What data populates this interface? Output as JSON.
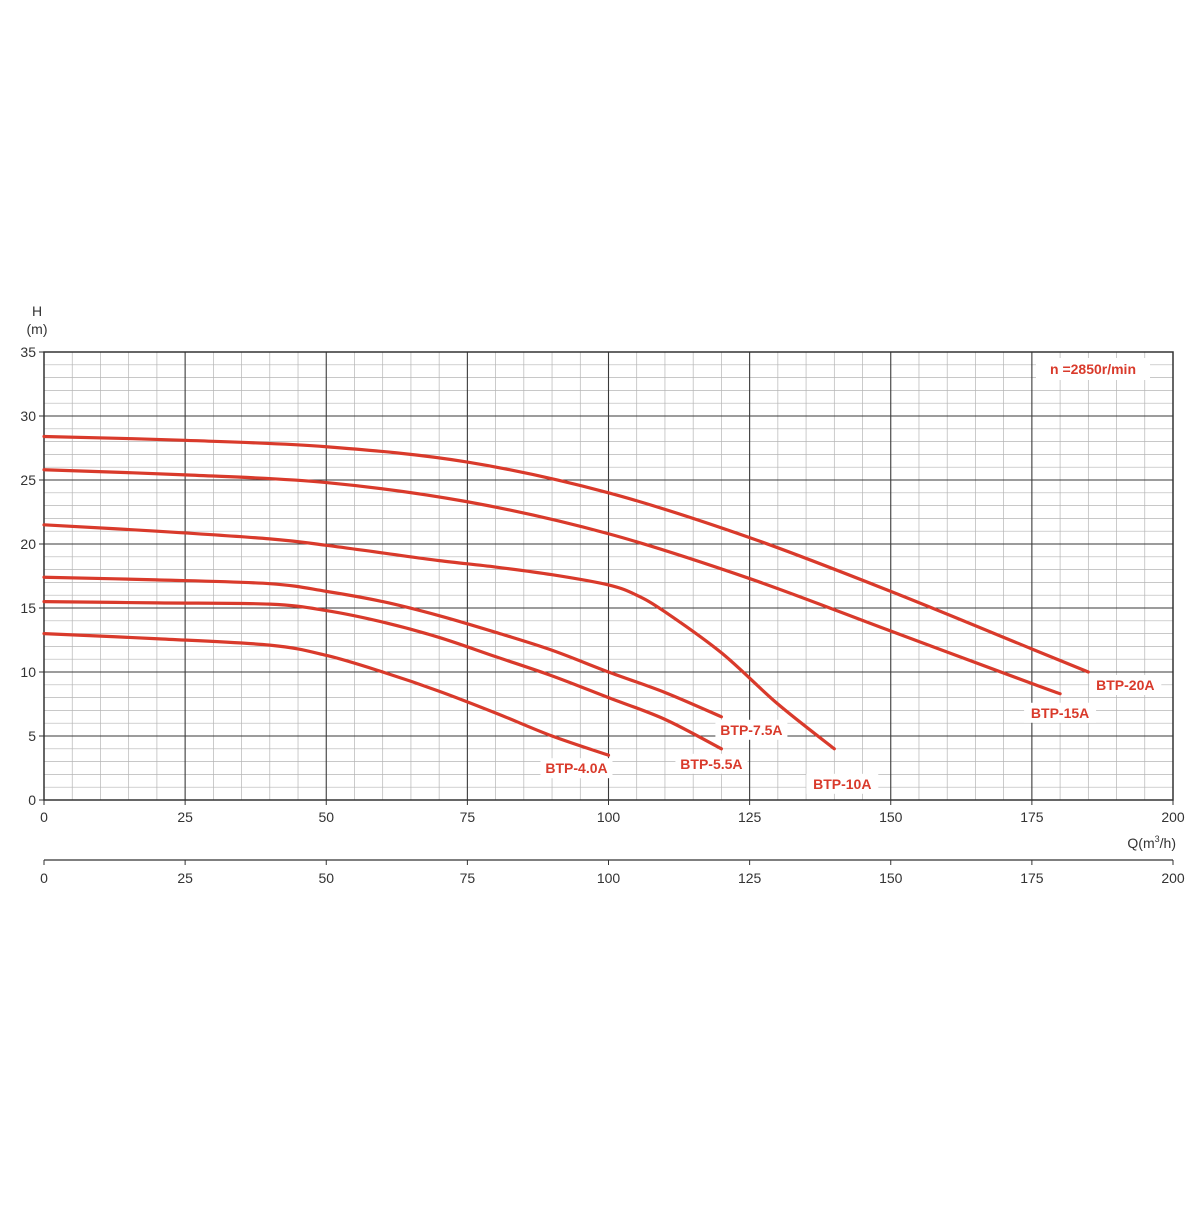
{
  "chart_data": {
    "type": "line",
    "title": "",
    "ylabel_top": "H",
    "ylabel_unit": "(m)",
    "xlabel_prefix": "Q(m",
    "xlabel_sup": "3",
    "xlabel_suffix": "/h)",
    "speed_note": "n =2850r/min",
    "xlim": [
      0,
      200
    ],
    "ylim": [
      0,
      35
    ],
    "x_ticks": [
      0,
      25,
      50,
      75,
      100,
      125,
      150,
      175,
      200
    ],
    "y_ticks": [
      0,
      5,
      10,
      15,
      20,
      25,
      30,
      35
    ],
    "secondary_x_ticks": [
      0,
      25,
      50,
      75,
      100,
      125,
      150,
      175,
      200
    ],
    "grid": true,
    "curve_color": "#d93a2b",
    "series": [
      {
        "name": "BTP-4.0A",
        "x": [
          0,
          20,
          40,
          50,
          60,
          70,
          80,
          90,
          100
        ],
        "y": [
          13.0,
          12.6,
          12.1,
          11.3,
          10.0,
          8.5,
          6.8,
          5.0,
          3.5
        ]
      },
      {
        "name": "BTP-5.5A",
        "x": [
          0,
          20,
          40,
          50,
          60,
          70,
          80,
          90,
          100,
          110,
          120
        ],
        "y": [
          15.5,
          15.4,
          15.3,
          14.8,
          13.9,
          12.7,
          11.2,
          9.7,
          8.0,
          6.3,
          4.0
        ]
      },
      {
        "name": "BTP-7.5A",
        "x": [
          0,
          20,
          40,
          50,
          60,
          70,
          80,
          90,
          100,
          110,
          120
        ],
        "y": [
          17.4,
          17.2,
          16.9,
          16.3,
          15.5,
          14.4,
          13.1,
          11.7,
          10.0,
          8.4,
          6.5
        ]
      },
      {
        "name": "BTP-10A",
        "x": [
          0,
          20,
          40,
          50,
          60,
          70,
          80,
          90,
          100,
          105,
          110,
          120,
          130,
          140
        ],
        "y": [
          21.5,
          21.0,
          20.4,
          19.9,
          19.3,
          18.7,
          18.2,
          17.6,
          16.8,
          16.0,
          14.7,
          11.5,
          7.5,
          4.0
        ]
      },
      {
        "name": "BTP-15A",
        "x": [
          0,
          25,
          50,
          75,
          100,
          125,
          150,
          175,
          180
        ],
        "y": [
          25.8,
          25.4,
          24.8,
          23.3,
          20.8,
          17.3,
          13.2,
          9.1,
          8.3
        ]
      },
      {
        "name": "BTP-20A",
        "x": [
          0,
          25,
          50,
          75,
          100,
          125,
          150,
          175,
          185
        ],
        "y": [
          28.4,
          28.1,
          27.6,
          26.4,
          24.0,
          20.5,
          16.3,
          11.8,
          10.0
        ]
      }
    ]
  }
}
